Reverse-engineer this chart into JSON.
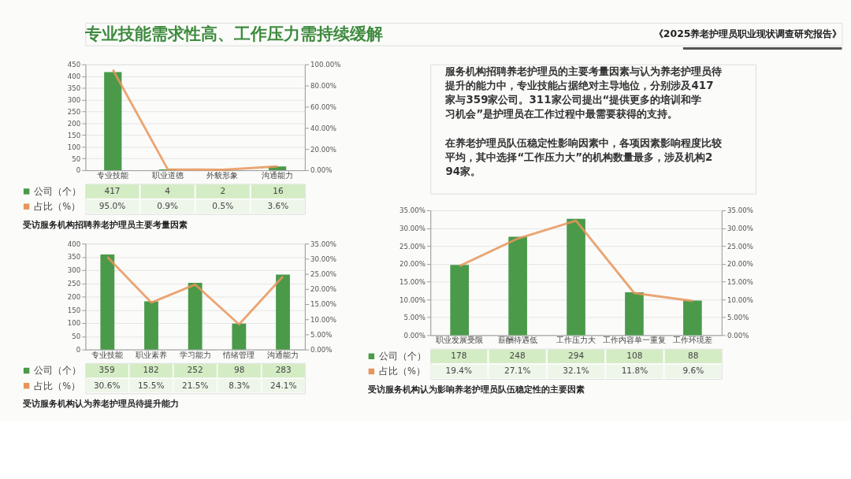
{
  "chart_data": [
    {
      "type": "other",
      "title": "专业技能需求性高、工作压力需持续缓解",
      "annotations": [
        "《2025养老护理员职业现状调查研究报告》",
        "服务机构招聘养老护理员的主要考量因素与认为养老护理员待提升的能力中，专业技能占据绝对主导地位，分别涉及417家与359家公司。311家公司提出“提供更多的培训和学习机会”是护理员在工作过程中最需要获得的支持。",
        "在养老护理员队伍稳定性影响因素中，各项因素影响程度比较平均，其中选择“工作压力大”的机构数量最多，涉及机构294家。"
      ]
    },
    {
      "type": "bar",
      "title": "受访服务机构招聘养老护理员主要考量因素",
      "categories": [
        "专业技能",
        "职业道德",
        "外貌形象",
        "沟通能力"
      ],
      "series": [
        {
          "name": "公司（个）",
          "type": "bar",
          "color": "#4a9a4a",
          "values": [
            417,
            4,
            2,
            16
          ],
          "value_labels": [
            "417",
            "4",
            "2",
            "16"
          ]
        },
        {
          "name": "占比（%）",
          "type": "line",
          "axis": "y2",
          "color": "#e8955c",
          "values": [
            95.0,
            0.9,
            0.5,
            3.6
          ],
          "value_labels": [
            "95.0%",
            "0.9%",
            "0.5%",
            "3.6%"
          ]
        }
      ],
      "ylim": [
        0,
        450
      ],
      "yticks": [
        0,
        50,
        100,
        150,
        200,
        250,
        300,
        350,
        400,
        450
      ],
      "y2lim": [
        0,
        100
      ],
      "y2ticks": [
        {
          "value": 0,
          "label": "0.00%"
        },
        {
          "value": 20,
          "label": "20.00%"
        },
        {
          "value": 40,
          "label": "40.00%"
        },
        {
          "value": 60,
          "label": "60.00%"
        },
        {
          "value": 80,
          "label": "80.00%"
        },
        {
          "value": 100,
          "label": "100.00%"
        }
      ],
      "grid": "y",
      "legend": "bottom left"
    },
    {
      "type": "bar",
      "title": "受访服务机构认为养老护理员待提升能力",
      "categories": [
        "专业技能",
        "职业素养",
        "学习能力",
        "情绪管理",
        "沟通能力"
      ],
      "series": [
        {
          "name": "公司（个）",
          "type": "bar",
          "color": "#4a9a4a",
          "values": [
            359,
            182,
            252,
            98,
            283
          ],
          "value_labels": [
            "359",
            "182",
            "252",
            "98",
            "283"
          ]
        },
        {
          "name": "占比（%）",
          "type": "line",
          "axis": "y2",
          "color": "#e8955c",
          "values": [
            30.6,
            15.5,
            21.5,
            8.3,
            24.1
          ],
          "value_labels": [
            "30.6%",
            "15.5%",
            "21.5%",
            "8.3%",
            "24.1%"
          ]
        }
      ],
      "ylim": [
        0,
        400
      ],
      "yticks": [
        0,
        50,
        100,
        150,
        200,
        250,
        300,
        350,
        400
      ],
      "y2lim": [
        0,
        35
      ],
      "y2ticks": [
        {
          "value": 0,
          "label": "0.00%"
        },
        {
          "value": 5,
          "label": "5.00%"
        },
        {
          "value": 10,
          "label": "10.00%"
        },
        {
          "value": 15,
          "label": "15.00%"
        },
        {
          "value": 20,
          "label": "20.00%"
        },
        {
          "value": 25,
          "label": "25.00%"
        },
        {
          "value": 30,
          "label": "30.00%"
        },
        {
          "value": 35,
          "label": "35.00%"
        }
      ],
      "grid": "y",
      "legend": "bottom left"
    },
    {
      "type": "bar",
      "title": "受访服务机构认为影响养老护理员队伍稳定性的主要因素",
      "categories": [
        "职业发展受限",
        "薪酬待遇低",
        "工作压力大",
        "工作内容单一重复",
        "工作环境差"
      ],
      "series": [
        {
          "name": "公司（个）",
          "type": "bar",
          "color": "#4a9a4a",
          "values": [
            19.7,
            27.6,
            32.6,
            12.0,
            9.7
          ]
        },
        {
          "name": "占比（%）",
          "type": "line",
          "axis": "y2",
          "color": "#e8955c",
          "values": [
            19.4,
            27.1,
            32.1,
            11.8,
            9.6
          ],
          "value_labels": [
            "19.4%",
            "27.1%",
            "32.1%",
            "11.8%",
            "9.6%"
          ]
        }
      ],
      "annotations": [
        "178",
        "248",
        "294",
        "108",
        "88"
      ],
      "ylim": [
        0,
        35
      ],
      "yticks": [
        {
          "value": 0,
          "label": "0.00%"
        },
        {
          "value": 5,
          "label": "5.00%"
        },
        {
          "value": 10,
          "label": "10.00%"
        },
        {
          "value": 15,
          "label": "15.00%"
        },
        {
          "value": 20,
          "label": "20.00%"
        },
        {
          "value": 25,
          "label": "25.00%"
        },
        {
          "value": 30,
          "label": "30.00%"
        },
        {
          "value": 35,
          "label": "35.00%"
        }
      ],
      "y2lim": [
        0,
        35
      ],
      "y2ticks": [
        {
          "value": 0,
          "label": "0.00%"
        },
        {
          "value": 5,
          "label": "5.00%"
        },
        {
          "value": 10,
          "label": "10.00%"
        },
        {
          "value": 15,
          "label": "15.00%"
        },
        {
          "value": 20,
          "label": "20.00%"
        },
        {
          "value": 25,
          "label": "25.00%"
        },
        {
          "value": 30,
          "label": "30.00%"
        },
        {
          "value": 35,
          "label": "35.00%"
        }
      ],
      "grid": "y",
      "legend": "bottom left"
    }
  ]
}
